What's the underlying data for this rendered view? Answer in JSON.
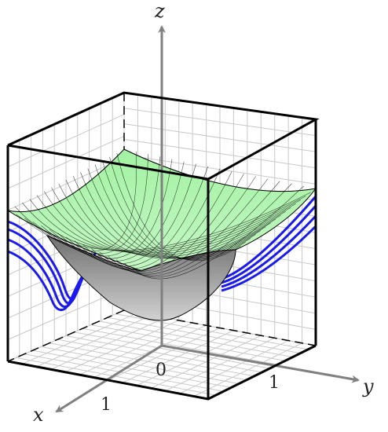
{
  "figure": {
    "axes": {
      "x": "x",
      "y": "y",
      "z": "z"
    },
    "ticks": {
      "origin": "0",
      "x_one": "1",
      "y_one": "1"
    },
    "colors": {
      "surface_top": "#a8efa8",
      "surface_under": "#9a9a9a",
      "contour": "#1a1aee",
      "axis": "#808080",
      "box": "#000000",
      "grid": "#c8c8c8"
    }
  }
}
